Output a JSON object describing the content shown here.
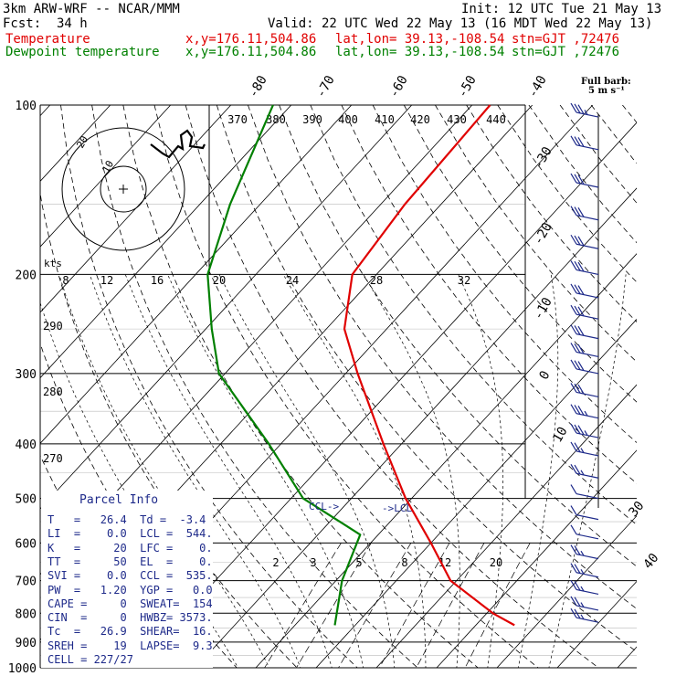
{
  "header": {
    "model": "3km ARW-WRF -- NCAR/MMM",
    "init": "Init: 12 UTC Tue 21 May 13",
    "fcst_label": "Fcst:",
    "fcst_value": "34 h",
    "valid": "Valid: 22 UTC Wed 22 May 13 (16 MDT Wed 22 May 13)",
    "temp_line": {
      "label": "Temperature",
      "xy": "x,y=176.11,504.86",
      "latlon": "lat,lon= 39.13,-108.54",
      "stn": "stn=GJT ,72476"
    },
    "dew_line": {
      "label": "Dewpoint temperature",
      "xy": "x,y=176.11,504.86",
      "latlon": "lat,lon= 39.13,-108.54",
      "stn": "stn=GJT ,72476"
    }
  },
  "barb_legend": {
    "line1": "Full barb:",
    "line2": "5 m s⁻¹"
  },
  "parcel": {
    "title": "Parcel Info",
    "rows": [
      "T   =   26.4  Td =  -3.4",
      "LI  =    0.0  LCL =  544.",
      "K   =     20  LFC =    0.",
      "TT  =     50  EL  =    0.",
      "SVI =    0.0  CCL =  535.",
      "PW  =   1.20  YGP =   0.0",
      "CAPE =     0  SWEAT=  154",
      "CIN  =     0  HWBZ= 3573.",
      "Tc  =   26.9  SHEAR=  16.",
      "SREH =    19  LAPSE=  9.3",
      "CELL = 227/27"
    ]
  },
  "annotations": {
    "ccl": "CCL->",
    "lcl": "->LCL",
    "kts": "kts"
  },
  "colors": {
    "temperature": "#e00000",
    "dewpoint": "#008000",
    "navy": "#1e2a8a"
  },
  "chart_data": {
    "type": "line",
    "title": "",
    "pressure_levels": [
      100,
      200,
      300,
      400,
      500,
      600,
      700,
      800,
      900,
      1000
    ],
    "isotherm_labels": [
      "-80",
      "-70",
      "-60",
      "-50",
      "-40",
      "-30",
      "-20",
      "-10",
      "0",
      "10",
      "30",
      "40"
    ],
    "mixing_ratio_labels": [
      "2",
      "3",
      "5",
      "8",
      "12",
      "20"
    ],
    "theta_e_labels": [
      "370",
      "380",
      "390",
      "400",
      "410",
      "420",
      "430",
      "440"
    ],
    "hodograph_speed_labels": [
      "8",
      "12",
      "16",
      "20",
      "24",
      "28",
      "32"
    ],
    "hodograph_ring_labels": [
      "10",
      "20"
    ],
    "theta_labels": [
      "290",
      "280",
      "270"
    ],
    "series": [
      {
        "name": "Temperature",
        "color": "#e00000",
        "points": [
          [
            100,
            -57
          ],
          [
            150,
            -56
          ],
          [
            200,
            -54
          ],
          [
            250,
            -47
          ],
          [
            300,
            -38
          ],
          [
            400,
            -23
          ],
          [
            500,
            -11
          ],
          [
            600,
            0
          ],
          [
            700,
            9
          ],
          [
            800,
            21
          ],
          [
            840,
            26.4
          ]
        ]
      },
      {
        "name": "Dewpoint temperature",
        "color": "#008000",
        "points": [
          [
            100,
            -93
          ],
          [
            150,
            -85
          ],
          [
            200,
            -78
          ],
          [
            250,
            -69
          ],
          [
            300,
            -61
          ],
          [
            400,
            -42
          ],
          [
            500,
            -28
          ],
          [
            580,
            -13
          ],
          [
            700,
            -9
          ],
          [
            840,
            -3.4
          ]
        ]
      }
    ],
    "wind_barbs": [
      {
        "p": 105,
        "spd": 25
      },
      {
        "p": 120,
        "spd": 30
      },
      {
        "p": 140,
        "spd": 30
      },
      {
        "p": 160,
        "spd": 30
      },
      {
        "p": 180,
        "spd": 30
      },
      {
        "p": 200,
        "spd": 30
      },
      {
        "p": 220,
        "spd": 30
      },
      {
        "p": 240,
        "spd": 30
      },
      {
        "p": 260,
        "spd": 30
      },
      {
        "p": 280,
        "spd": 30
      },
      {
        "p": 300,
        "spd": 30
      },
      {
        "p": 330,
        "spd": 30
      },
      {
        "p": 360,
        "spd": 25
      },
      {
        "p": 390,
        "spd": 25
      },
      {
        "p": 420,
        "spd": 15
      },
      {
        "p": 460,
        "spd": 15
      },
      {
        "p": 500,
        "spd": 10
      },
      {
        "p": 545,
        "spd": 10
      },
      {
        "p": 590,
        "spd": 10
      },
      {
        "p": 640,
        "spd": 15
      },
      {
        "p": 690,
        "spd": 15
      },
      {
        "p": 740,
        "spd": 15
      },
      {
        "p": 790,
        "spd": 15
      },
      {
        "p": 830,
        "spd": 15
      }
    ]
  }
}
